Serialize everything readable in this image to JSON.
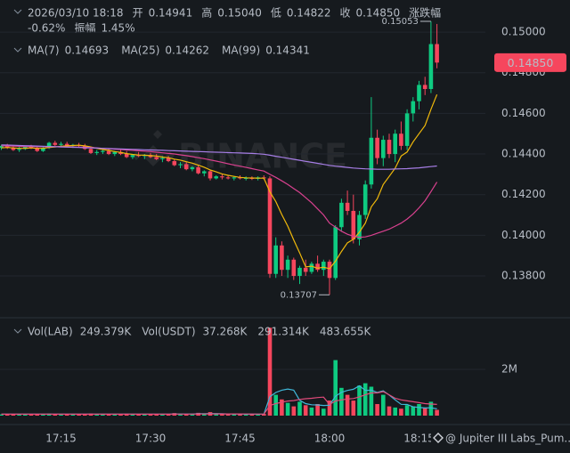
{
  "header": {
    "datetime": "2026/03/10 18:18",
    "open_label": "开",
    "open": 0.14941,
    "high_label": "高",
    "high": {
      "value": 0.1504,
      "label": "0.15040"
    },
    "low_label": "低",
    "low": 0.14822,
    "close_label": "收",
    "close": {
      "value": 0.1485,
      "label": "0.14850"
    },
    "change_label": "涨跌幅",
    "change": "-0.62%",
    "amplitude_label": "振幅",
    "amplitude": "1.45%"
  },
  "watermark": "BINANCE",
  "attribution": "@ Jupiter III Labs_Pum...",
  "chart_data": [
    {
      "type": "candlestick",
      "x": [
        "17:05",
        "17:06",
        "17:07",
        "17:08",
        "17:09",
        "17:10",
        "17:11",
        "17:12",
        "17:13",
        "17:14",
        "17:15",
        "17:16",
        "17:17",
        "17:18",
        "17:19",
        "17:20",
        "17:21",
        "17:22",
        "17:23",
        "17:24",
        "17:25",
        "17:26",
        "17:27",
        "17:28",
        "17:29",
        "17:30",
        "17:31",
        "17:32",
        "17:33",
        "17:34",
        "17:35",
        "17:36",
        "17:37",
        "17:38",
        "17:39",
        "17:40",
        "17:41",
        "17:42",
        "17:43",
        "17:44",
        "17:45",
        "17:46",
        "17:47",
        "17:48",
        "17:49",
        "17:50",
        "17:51",
        "17:52",
        "17:53",
        "17:54",
        "17:55",
        "17:56",
        "17:57",
        "17:58",
        "17:59",
        "18:00",
        "18:01",
        "18:02",
        "18:03",
        "18:04",
        "18:05",
        "18:06",
        "18:07",
        "18:08",
        "18:09",
        "18:10",
        "18:11",
        "18:12",
        "18:13",
        "18:14",
        "18:15",
        "18:16",
        "18:17",
        "18:18"
      ],
      "open": [
        0.1443,
        0.1444,
        0.1443,
        0.1442,
        0.14425,
        0.14435,
        0.1443,
        0.14415,
        0.1443,
        0.14455,
        0.14445,
        0.1445,
        0.1444,
        0.14445,
        0.1444,
        0.14425,
        0.14405,
        0.1441,
        0.14415,
        0.144,
        0.1441,
        0.144,
        0.14385,
        0.14395,
        0.1439,
        0.14395,
        0.14385,
        0.14375,
        0.1438,
        0.14365,
        0.14345,
        0.1435,
        0.14325,
        0.14335,
        0.14305,
        0.14315,
        0.1428,
        0.1429,
        0.14285,
        0.1428,
        0.14285,
        0.1428,
        0.14282,
        0.14278,
        0.14285,
        0.1428,
        0.1381,
        0.1395,
        0.1383,
        0.1388,
        0.138,
        0.1384,
        0.1382,
        0.1386,
        0.1383,
        0.1387,
        0.1379,
        0.1404,
        0.1416,
        0.1412,
        0.1398,
        0.141,
        0.1425,
        0.1448,
        0.1438,
        0.1447,
        0.144,
        0.145,
        0.1444,
        0.146,
        0.1466,
        0.1474,
        0.1472,
        0.14941
      ],
      "high": [
        0.14445,
        0.1445,
        0.1444,
        0.14435,
        0.1444,
        0.14445,
        0.1444,
        0.14435,
        0.1446,
        0.14465,
        0.1446,
        0.1446,
        0.1445,
        0.14455,
        0.1445,
        0.14435,
        0.1442,
        0.14425,
        0.14425,
        0.14415,
        0.1442,
        0.14415,
        0.144,
        0.1441,
        0.144,
        0.14405,
        0.144,
        0.1439,
        0.1439,
        0.14375,
        0.1436,
        0.1436,
        0.1434,
        0.14345,
        0.1432,
        0.1432,
        0.14295,
        0.143,
        0.14295,
        0.1429,
        0.14295,
        0.1429,
        0.1429,
        0.1429,
        0.14295,
        0.1429,
        0.1399,
        0.1397,
        0.139,
        0.1389,
        0.1385,
        0.1388,
        0.1387,
        0.139,
        0.1388,
        0.1388,
        0.1405,
        0.1418,
        0.1422,
        0.142,
        0.1412,
        0.1427,
        0.1468,
        0.1452,
        0.1449,
        0.145,
        0.1452,
        0.1456,
        0.1462,
        0.1468,
        0.1476,
        0.1478,
        0.15053,
        0.1504
      ],
      "low": [
        0.1442,
        0.14425,
        0.14415,
        0.1441,
        0.1442,
        0.14425,
        0.1441,
        0.1441,
        0.14425,
        0.1444,
        0.1444,
        0.14435,
        0.1443,
        0.14435,
        0.1442,
        0.144,
        0.14395,
        0.144,
        0.14395,
        0.1439,
        0.14395,
        0.1438,
        0.14375,
        0.14385,
        0.14375,
        0.1438,
        0.1437,
        0.1436,
        0.1436,
        0.1434,
        0.1433,
        0.1432,
        0.14315,
        0.143,
        0.1429,
        0.1427,
        0.14275,
        0.14275,
        0.14275,
        0.1427,
        0.14275,
        0.1427,
        0.14272,
        0.1427,
        0.14275,
        0.1379,
        0.1379,
        0.138,
        0.1379,
        0.1378,
        0.1376,
        0.138,
        0.1381,
        0.1382,
        0.138,
        0.13707,
        0.1378,
        0.1402,
        0.141,
        0.1396,
        0.1395,
        0.1408,
        0.1423,
        0.1435,
        0.1434,
        0.1438,
        0.1436,
        0.1442,
        0.1442,
        0.1456,
        0.1462,
        0.1469,
        0.147,
        0.14822
      ],
      "close": [
        0.1444,
        0.1443,
        0.1442,
        0.14425,
        0.14435,
        0.1443,
        0.14415,
        0.1443,
        0.14455,
        0.14445,
        0.1445,
        0.1444,
        0.14445,
        0.1444,
        0.14425,
        0.14405,
        0.1441,
        0.14415,
        0.144,
        0.1441,
        0.144,
        0.14385,
        0.14395,
        0.1439,
        0.14395,
        0.14385,
        0.14375,
        0.1438,
        0.14365,
        0.14345,
        0.1435,
        0.14325,
        0.14335,
        0.14305,
        0.14315,
        0.1428,
        0.1429,
        0.14285,
        0.1428,
        0.14285,
        0.1428,
        0.14282,
        0.14278,
        0.14285,
        0.1428,
        0.1381,
        0.1395,
        0.1383,
        0.1388,
        0.138,
        0.1384,
        0.1382,
        0.1386,
        0.1383,
        0.1387,
        0.1379,
        0.1404,
        0.1416,
        0.1412,
        0.1398,
        0.141,
        0.1425,
        0.1448,
        0.1438,
        0.1447,
        0.144,
        0.145,
        0.1444,
        0.146,
        0.1466,
        0.1474,
        0.1472,
        0.14941,
        0.1485
      ],
      "up_color": "#0ecb81",
      "down_color": "#f6465d",
      "ylim": [
        0.13603,
        0.15158
      ],
      "yticks": [
        {
          "value": 0.138,
          "label": "0.13800"
        },
        {
          "value": 0.14,
          "label": "0.14000"
        },
        {
          "value": 0.142,
          "label": "0.14200"
        },
        {
          "value": 0.144,
          "label": "0.14400"
        },
        {
          "value": 0.146,
          "label": "0.14600"
        },
        {
          "value": 0.148,
          "label": "0.14800"
        },
        {
          "value": 0.15,
          "label": "0.15000"
        }
      ],
      "xticks": [
        "17:15",
        "17:30",
        "17:45",
        "18:00",
        "18:15"
      ],
      "grid": true,
      "last_price": {
        "value": 0.1485,
        "label": "0.14850"
      },
      "series": [
        {
          "name": "MA(7)",
          "color": "#f0b90b",
          "values": [
            0.1443,
            0.14432,
            0.1443,
            0.14428,
            0.14428,
            0.1443,
            0.14428,
            0.14428,
            0.14432,
            0.14435,
            0.14438,
            0.1444,
            0.14442,
            0.14443,
            0.1444,
            0.14435,
            0.14428,
            0.14422,
            0.14418,
            0.14412,
            0.14408,
            0.14402,
            0.14398,
            0.14395,
            0.14394,
            0.14392,
            0.1439,
            0.14385,
            0.14382,
            0.14375,
            0.1437,
            0.14362,
            0.14355,
            0.14345,
            0.14335,
            0.14322,
            0.14312,
            0.14302,
            0.14295,
            0.1429,
            0.14285,
            0.14283,
            0.14282,
            0.14281,
            0.14281,
            0.14214,
            0.14166,
            0.14102,
            0.14045,
            0.13977,
            0.13913,
            0.13845,
            0.13848,
            0.13838,
            0.13843,
            0.13835,
            0.13873,
            0.1392,
            0.13963,
            0.1398,
            0.14015,
            0.1406,
            0.1414,
            0.1418,
            0.1425,
            0.1429,
            0.1433,
            0.1439,
            0.1441,
            0.1446,
            0.145,
            0.1454,
            0.1462,
            0.14693
          ]
        },
        {
          "name": "MA(25)",
          "color": "#d9418f",
          "values": [
            0.1444,
            0.1444,
            0.14439,
            0.14438,
            0.14437,
            0.14437,
            0.14436,
            0.14436,
            0.14436,
            0.14436,
            0.14436,
            0.14435,
            0.14435,
            0.14434,
            0.14434,
            0.14432,
            0.1443,
            0.14428,
            0.14426,
            0.14424,
            0.14422,
            0.1442,
            0.14418,
            0.14416,
            0.14414,
            0.14412,
            0.14409,
            0.14406,
            0.14403,
            0.144,
            0.14396,
            0.14392,
            0.14387,
            0.14382,
            0.14377,
            0.14371,
            0.14365,
            0.14359,
            0.14352,
            0.14346,
            0.1434,
            0.14334,
            0.14328,
            0.14322,
            0.14316,
            0.143,
            0.14285,
            0.14268,
            0.1425,
            0.1423,
            0.1421,
            0.14185,
            0.1416,
            0.1413,
            0.141,
            0.1406,
            0.1404,
            0.1402,
            0.14005,
            0.13995,
            0.1399,
            0.13992,
            0.14,
            0.1401,
            0.1402,
            0.1403,
            0.14045,
            0.1406,
            0.1408,
            0.14105,
            0.14135,
            0.1417,
            0.14215,
            0.14262
          ]
        },
        {
          "name": "MA(99)",
          "color": "#a77ee6",
          "values": [
            0.14445,
            0.14444,
            0.14443,
            0.14442,
            0.14441,
            0.1444,
            0.14439,
            0.14438,
            0.14437,
            0.14436,
            0.14435,
            0.14434,
            0.14433,
            0.14432,
            0.14431,
            0.1443,
            0.14429,
            0.14428,
            0.14427,
            0.14426,
            0.14425,
            0.14424,
            0.14423,
            0.14422,
            0.14421,
            0.1442,
            0.14419,
            0.14418,
            0.14417,
            0.14416,
            0.14415,
            0.14414,
            0.14413,
            0.14412,
            0.14411,
            0.1441,
            0.14409,
            0.14408,
            0.14407,
            0.14406,
            0.14405,
            0.14404,
            0.14403,
            0.14401,
            0.14399,
            0.14394,
            0.14389,
            0.14384,
            0.14379,
            0.14374,
            0.14369,
            0.14364,
            0.14359,
            0.14354,
            0.14349,
            0.14344,
            0.1434,
            0.14337,
            0.14334,
            0.14331,
            0.14329,
            0.14327,
            0.14326,
            0.14325,
            0.14325,
            0.14325,
            0.14326,
            0.14327,
            0.14328,
            0.1433,
            0.14332,
            0.14335,
            0.14338,
            0.14341
          ]
        }
      ]
    },
    {
      "type": "volume",
      "values": [
        52000,
        48000,
        61000,
        45000,
        39000,
        57000,
        66000,
        42000,
        88000,
        71000,
        53000,
        47000,
        60000,
        44000,
        58000,
        92000,
        63000,
        51000,
        70000,
        55000,
        49000,
        83000,
        60000,
        52000,
        47000,
        68000,
        74000,
        59000,
        63000,
        110000,
        85000,
        72000,
        66000,
        120000,
        94000,
        150000,
        78000,
        62000,
        58000,
        70000,
        55000,
        61000,
        49000,
        66000,
        73000,
        3800000,
        900000,
        700000,
        550000,
        400000,
        600000,
        450000,
        350000,
        500000,
        300000,
        650000,
        2400000,
        1200000,
        900000,
        650000,
        1300000,
        1400000,
        1250000,
        500000,
        900000,
        400000,
        350000,
        300000,
        450000,
        400000,
        500000,
        350000,
        600000,
        249379
      ],
      "ylim": [
        0,
        4040000
      ],
      "yticks": [
        {
          "value": 2000000,
          "label": "2M"
        }
      ],
      "legend": [
        {
          "name": "Vol(LAB)",
          "value": 249379,
          "label": "249.379K"
        },
        {
          "name": "Vol(USDT)",
          "value": 37268,
          "label": "37.268K"
        }
      ],
      "series": [
        {
          "color": "#3fb8d9",
          "legend_label": "291.314K",
          "values": [
            60000,
            60000,
            60000,
            60000,
            60000,
            60000,
            60000,
            60000,
            60000,
            60000,
            60000,
            60000,
            60000,
            60000,
            60000,
            60000,
            60000,
            60000,
            60000,
            60000,
            60000,
            60000,
            60000,
            60000,
            60000,
            60000,
            60000,
            60000,
            60000,
            70000,
            70000,
            70000,
            70000,
            80000,
            80000,
            90000,
            90000,
            80000,
            70000,
            70000,
            65000,
            60000,
            60000,
            60000,
            60000,
            820000,
            1000000,
            1100000,
            1150000,
            1100000,
            660000,
            520000,
            470000,
            460000,
            440000,
            450000,
            840000,
            1010000,
            1090000,
            1140000,
            1290000,
            1090000,
            1100000,
            1000000,
            1070000,
            890000,
            680000,
            490000,
            480000,
            380000,
            350000,
            330000,
            340000,
            291314
          ]
        },
        {
          "color": "#e04a7a",
          "legend_label": "483.655K",
          "values": [
            62000,
            62000,
            62000,
            62000,
            62000,
            62000,
            62000,
            62000,
            62000,
            62000,
            62000,
            62000,
            62000,
            62000,
            62000,
            62000,
            62000,
            62000,
            62000,
            62000,
            62000,
            62000,
            62000,
            62000,
            62000,
            62000,
            62000,
            62000,
            62000,
            65000,
            65000,
            65000,
            65000,
            70000,
            70000,
            75000,
            75000,
            75000,
            75000,
            75000,
            72000,
            70000,
            68000,
            66000,
            65000,
            440000,
            520000,
            580000,
            630000,
            650000,
            700000,
            730000,
            750000,
            780000,
            800000,
            480000,
            630000,
            680000,
            720000,
            740000,
            810000,
            900000,
            980000,
            980000,
            1040000,
            900000,
            750000,
            680000,
            640000,
            600000,
            560000,
            520000,
            500000,
            483655
          ]
        }
      ]
    }
  ]
}
